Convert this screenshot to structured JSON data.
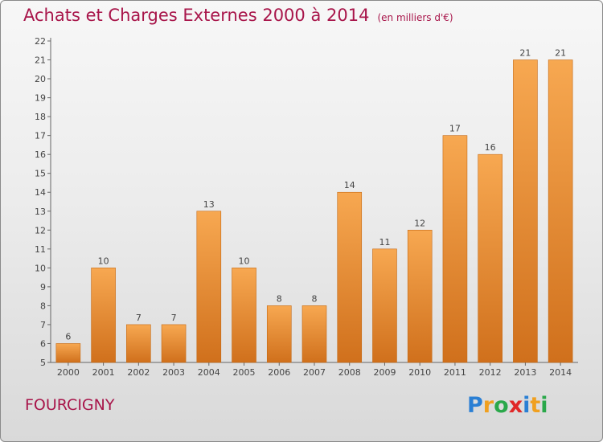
{
  "title": "Achats et Charges Externes 2000 à 2014",
  "title_unit": "(en milliers d'€)",
  "place": "FOURCIGNY",
  "logo": {
    "letters": [
      "P",
      "r",
      "o",
      "x",
      "i",
      "t",
      "i"
    ],
    "colors": [
      "#2a7fd4",
      "#f0a020",
      "#2aa84a",
      "#e02828",
      "#2a7fd4",
      "#f0a020",
      "#2aa84a"
    ]
  },
  "colors": {
    "title": "#a8154a",
    "bar_light": "#f6a24e",
    "bar_dark": "#d2721e",
    "axis": "#555555"
  },
  "chart_data": {
    "type": "bar",
    "title": "Achats et Charges Externes 2000 à 2014",
    "categories": [
      "2000",
      "2001",
      "2002",
      "2003",
      "2004",
      "2005",
      "2006",
      "2007",
      "2008",
      "2009",
      "2010",
      "2011",
      "2012",
      "2013",
      "2014"
    ],
    "values": [
      6,
      10,
      7,
      7,
      13,
      10,
      8,
      8,
      14,
      11,
      12,
      17,
      16,
      21,
      21
    ],
    "ylim": [
      5,
      22
    ],
    "yticks": [
      "5",
      "6",
      "7",
      "8",
      "9",
      "10",
      "11",
      "12",
      "13",
      "14",
      "15",
      "16",
      "17",
      "18",
      "19",
      "20",
      "21",
      "22"
    ],
    "grid": false,
    "legend": "none"
  }
}
